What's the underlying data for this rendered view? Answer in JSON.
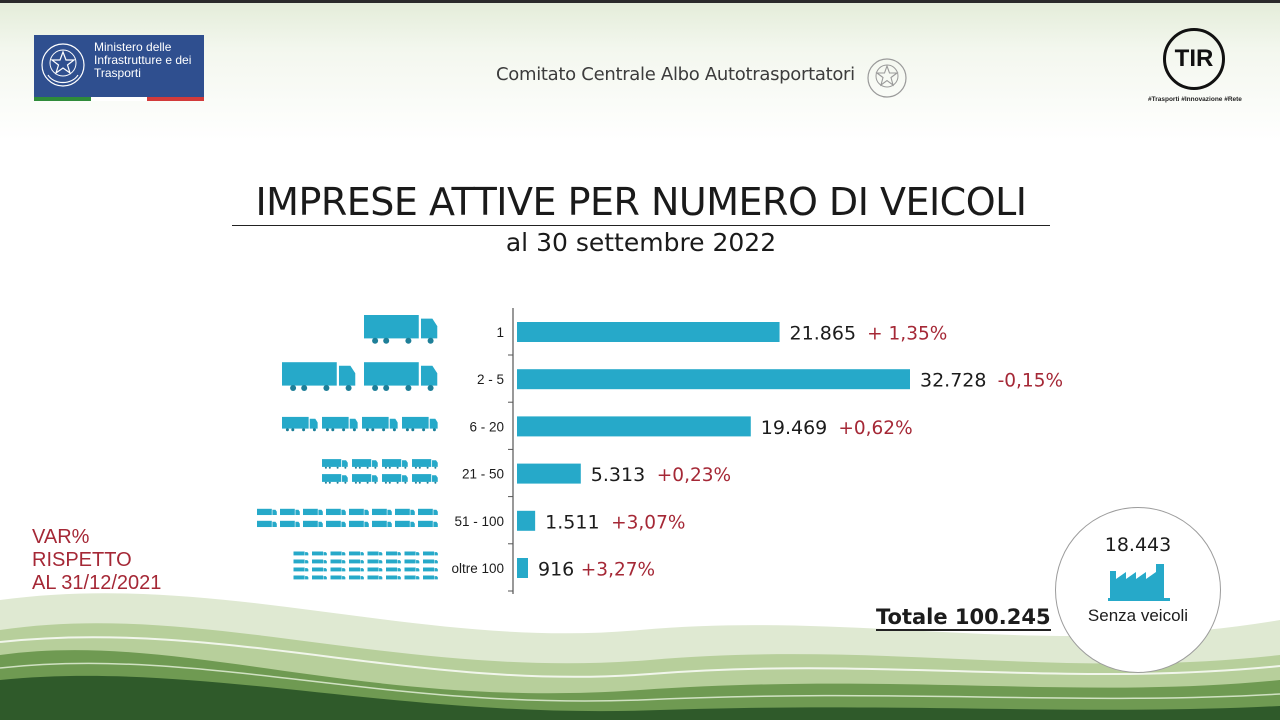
{
  "header": {
    "ministry_name": "Ministero delle Infrastrutture e dei Trasporti",
    "committee": "Comitato Centrale Albo Autotrasportatori",
    "brand": "TIR",
    "brand_tagline": "#Trasporti #Innovazione #Rete"
  },
  "colors": {
    "bar": "#26a9c9",
    "variation_text": "#a52836",
    "ministry_blue": "#2f4f8f"
  },
  "chart_data": {
    "type": "bar",
    "orientation": "horizontal",
    "title": "IMPRESE ATTIVE PER NUMERO DI VEICOLI",
    "subtitle": "al 30 settembre 2022",
    "categories": [
      "1",
      "2 - 5",
      "6 - 20",
      "21 - 50",
      "51 - 100",
      "oltre 100"
    ],
    "values": [
      21865,
      32728,
      19469,
      5313,
      1511,
      916
    ],
    "value_labels": [
      "21.865",
      "32.728",
      "19.469",
      "5.313",
      "1.511",
      "916"
    ],
    "variations": [
      "+ 1,35%",
      "-0,15%",
      "+0,62%",
      "+0,23%",
      "+3,07%",
      "+3,27%"
    ],
    "truck_icon_counts": [
      1,
      2,
      4,
      8,
      16,
      32
    ],
    "xlim": [
      0,
      34500
    ],
    "grid": false,
    "legend": "none"
  },
  "variation_note": [
    "VAR%",
    "RISPETTO",
    "AL 31/12/2021"
  ],
  "total_label": "Totale 100.245",
  "no_vehicles": {
    "value": "18.443",
    "label": "Senza veicoli",
    "icon": "factory-icon"
  }
}
